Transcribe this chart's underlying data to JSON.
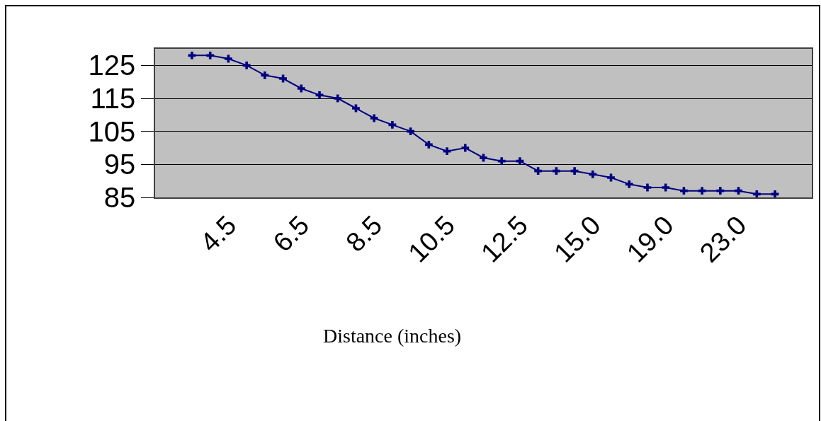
{
  "chart_data": {
    "type": "line",
    "xlabel": "Distance (inches)",
    "categories": [
      null,
      null,
      "4.5",
      null,
      null,
      null,
      "6.5",
      null,
      null,
      null,
      "8.5",
      null,
      null,
      null,
      "10.5",
      null,
      null,
      null,
      "12.5",
      null,
      null,
      null,
      "15.0",
      null,
      null,
      null,
      "19.0",
      null,
      null,
      null,
      "23.0",
      null,
      null
    ],
    "series": [
      {
        "color": "#000080",
        "values": [
          128,
          128,
          127,
          125,
          122,
          121,
          118,
          116,
          115,
          112,
          109,
          107,
          105,
          101,
          99,
          100,
          97,
          96,
          96,
          93,
          93,
          93,
          92,
          91,
          89,
          88,
          88,
          87,
          87,
          87,
          87,
          86,
          86
        ]
      }
    ],
    "ylim": [
      85,
      130
    ],
    "yticks": [
      85,
      95,
      105,
      115,
      125
    ],
    "grid": "y",
    "legend": false,
    "marker": "cross",
    "line_style": "solid"
  }
}
